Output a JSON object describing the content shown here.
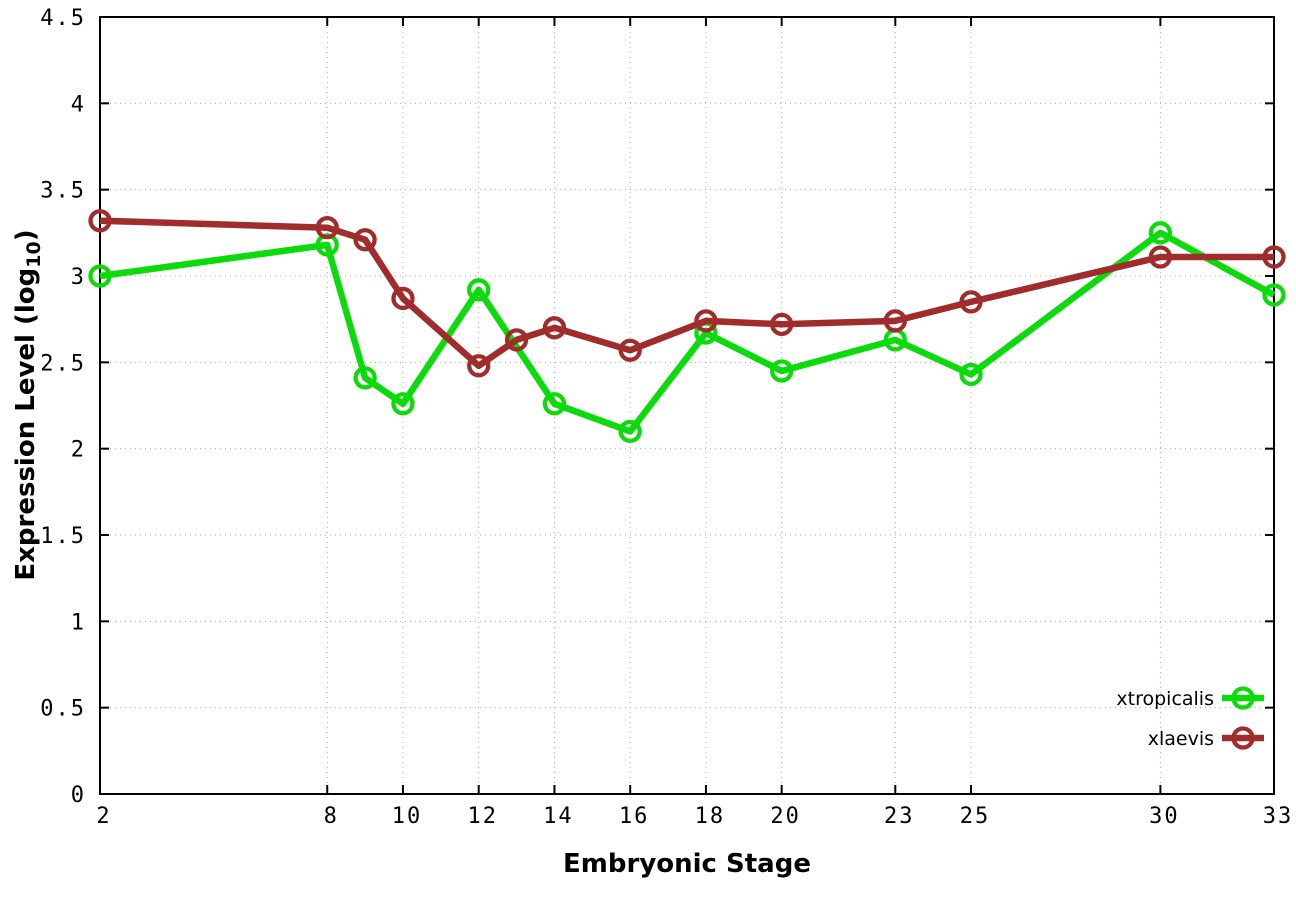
{
  "page": {
    "background": "#ffffff"
  },
  "chart_data": {
    "type": "line",
    "xlabel": "Embryonic Stage",
    "ylabel": "Expression Level (log10)",
    "ylabel_parts": {
      "prefix": "Expression Level (log",
      "sub": "10",
      "suffix": ")"
    },
    "xlim": [
      2,
      33
    ],
    "ylim": [
      0,
      4.5
    ],
    "x_ticks": [
      2,
      8,
      10,
      12,
      14,
      16,
      18,
      20,
      23,
      25,
      30,
      33
    ],
    "x_tick_labels": [
      "2",
      "8",
      "10",
      "12",
      "14",
      "16",
      "18",
      "20",
      "23",
      "25",
      "30",
      "33"
    ],
    "y_ticks": [
      0,
      0.5,
      1,
      1.5,
      2,
      2.5,
      3,
      3.5,
      4,
      4.5
    ],
    "y_tick_labels": [
      "0",
      "0.5",
      "1",
      "1.5",
      "2",
      "2.5",
      "3",
      "3.5",
      "4",
      "4.5"
    ],
    "grid": true,
    "grid_style": "dotted",
    "legend_position": "bottom-right",
    "marker": "open-circle",
    "series": [
      {
        "name": "xtropicalis",
        "color": "#0bdb0b",
        "points": [
          [
            2,
            3.0
          ],
          [
            8,
            3.18
          ],
          [
            9,
            2.41
          ],
          [
            10,
            2.26
          ],
          [
            12,
            2.92
          ],
          [
            14,
            2.26
          ],
          [
            16,
            2.1
          ],
          [
            18,
            2.67
          ],
          [
            20,
            2.45
          ],
          [
            23,
            2.63
          ],
          [
            25,
            2.43
          ],
          [
            30,
            3.25
          ],
          [
            33,
            2.89
          ]
        ]
      },
      {
        "name": "xlaevis",
        "color": "#a02c2c",
        "points": [
          [
            2,
            3.32
          ],
          [
            8,
            3.28
          ],
          [
            9,
            3.21
          ],
          [
            10,
            2.87
          ],
          [
            12,
            2.48
          ],
          [
            13,
            2.63
          ],
          [
            14,
            2.7
          ],
          [
            16,
            2.57
          ],
          [
            18,
            2.74
          ],
          [
            20,
            2.72
          ],
          [
            23,
            2.74
          ],
          [
            25,
            2.85
          ],
          [
            30,
            3.11
          ],
          [
            33,
            3.11
          ]
        ]
      }
    ],
    "colors": {
      "grid": "#aaaaaa",
      "border": "#000000",
      "tick_text": "#000000"
    }
  }
}
